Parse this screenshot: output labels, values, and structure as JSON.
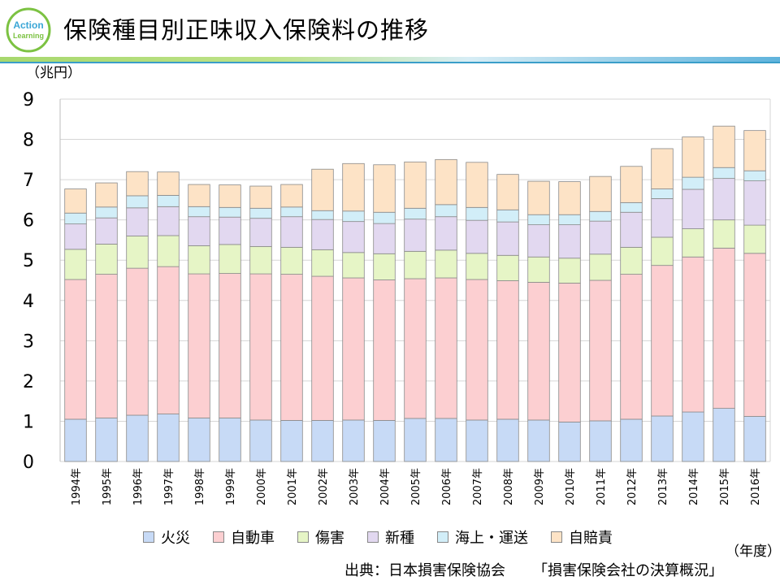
{
  "header": {
    "title": "保険種目別正味収入保険料の推移",
    "logo_line1": "Action",
    "logo_line2": "Learning"
  },
  "chart_data": {
    "type": "bar",
    "stacked": true,
    "title": "保険種目別正味収入保険料の推移",
    "ylabel": "（兆円）",
    "xlabel": "（年度）",
    "ylim": [
      0,
      9
    ],
    "yticks": [
      "0",
      "1",
      "2",
      "3",
      "4",
      "5",
      "6",
      "7",
      "8",
      "9"
    ],
    "grid": true,
    "legend_position": "bottom",
    "categories": [
      "1994年",
      "1995年",
      "1996年",
      "1997年",
      "1998年",
      "1999年",
      "2000年",
      "2001年",
      "2002年",
      "2003年",
      "2004年",
      "2005年",
      "2006年",
      "2007年",
      "2008年",
      "2009年",
      "2010年",
      "2011年",
      "2012年",
      "2013年",
      "2014年",
      "2015年",
      "2016年"
    ],
    "series": [
      {
        "name": "火災",
        "color": "#c7daf6",
        "values": [
          1.05,
          1.08,
          1.15,
          1.18,
          1.08,
          1.08,
          1.03,
          1.02,
          1.02,
          1.03,
          1.02,
          1.07,
          1.07,
          1.03,
          1.05,
          1.03,
          0.98,
          1.01,
          1.05,
          1.13,
          1.23,
          1.32,
          1.12
        ]
      },
      {
        "name": "自動車",
        "color": "#fccfd1",
        "values": [
          3.47,
          3.57,
          3.65,
          3.66,
          3.58,
          3.59,
          3.63,
          3.63,
          3.58,
          3.53,
          3.49,
          3.47,
          3.49,
          3.49,
          3.44,
          3.42,
          3.45,
          3.49,
          3.6,
          3.74,
          3.85,
          3.98,
          4.05
        ]
      },
      {
        "name": "傷害",
        "color": "#e6f5c6",
        "values": [
          0.75,
          0.75,
          0.8,
          0.77,
          0.7,
          0.72,
          0.68,
          0.67,
          0.66,
          0.63,
          0.65,
          0.68,
          0.69,
          0.65,
          0.63,
          0.63,
          0.62,
          0.65,
          0.67,
          0.7,
          0.7,
          0.7,
          0.7
        ]
      },
      {
        "name": "新種",
        "color": "#e2d8f0",
        "values": [
          0.63,
          0.65,
          0.7,
          0.72,
          0.72,
          0.68,
          0.7,
          0.76,
          0.75,
          0.77,
          0.75,
          0.8,
          0.83,
          0.82,
          0.83,
          0.8,
          0.83,
          0.82,
          0.87,
          0.96,
          0.98,
          1.03,
          1.1
        ]
      },
      {
        "name": "海上・運送",
        "color": "#d2eef8",
        "values": [
          0.27,
          0.27,
          0.3,
          0.28,
          0.25,
          0.24,
          0.25,
          0.24,
          0.22,
          0.26,
          0.28,
          0.27,
          0.3,
          0.32,
          0.3,
          0.25,
          0.25,
          0.24,
          0.24,
          0.24,
          0.3,
          0.27,
          0.25
        ]
      },
      {
        "name": "自賠責",
        "color": "#fde3c6",
        "values": [
          0.6,
          0.6,
          0.6,
          0.58,
          0.55,
          0.56,
          0.55,
          0.56,
          1.03,
          1.18,
          1.18,
          1.15,
          1.12,
          1.12,
          0.88,
          0.83,
          0.82,
          0.87,
          0.9,
          1.0,
          1.0,
          1.03,
          1.0
        ]
      }
    ]
  },
  "footer": {
    "unit_x": "（年度）",
    "source_label": "出典：日本損害保険協会",
    "source_doc": "「損害保険会社の決算概況」"
  }
}
